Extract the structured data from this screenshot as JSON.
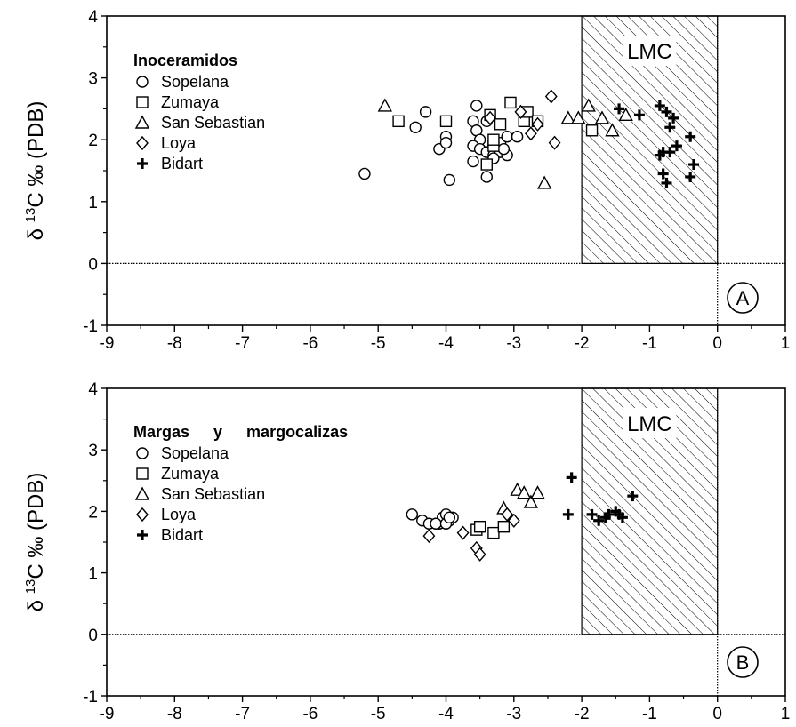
{
  "chart_data": [
    {
      "type": "scatter",
      "panel_label": "A",
      "ylabel": "δ13C ‰ (PDB)",
      "ylabel_parts": {
        "delta": "δ",
        "superscript": "13",
        "rest": "C ‰ (PDB)"
      },
      "xlim": [
        -9,
        1
      ],
      "ylim": [
        -1,
        4
      ],
      "x_ticks": [
        "-9",
        "-8",
        "-7",
        "-6",
        "-5",
        "-4",
        "-3",
        "-2",
        "-1",
        "0",
        "1"
      ],
      "y_ticks": [
        "-1",
        "0",
        "1",
        "2",
        "3",
        "4"
      ],
      "legend_title": "Inoceramidos",
      "legend_position": "top-left",
      "shaded_region": {
        "label": "LMC",
        "x": [
          -2,
          0
        ],
        "y": [
          0,
          4
        ],
        "pattern": "diagonal hatch"
      },
      "reference_lines": {
        "y": 0,
        "x": 0
      },
      "series": [
        {
          "name": "Sopelana",
          "marker": "circle",
          "points": [
            [
              -5.2,
              1.45
            ],
            [
              -4.3,
              2.45
            ],
            [
              -4.1,
              1.85
            ],
            [
              -4.0,
              2.05
            ],
            [
              -4.0,
              1.95
            ],
            [
              -3.95,
              1.35
            ],
            [
              -4.45,
              2.2
            ],
            [
              -3.55,
              2.55
            ],
            [
              -3.6,
              2.3
            ],
            [
              -3.55,
              2.15
            ],
            [
              -3.5,
              2.0
            ],
            [
              -3.6,
              1.9
            ],
            [
              -3.5,
              1.85
            ],
            [
              -3.4,
              1.8
            ],
            [
              -3.3,
              1.75
            ],
            [
              -3.2,
              1.8
            ],
            [
              -3.6,
              1.65
            ],
            [
              -3.4,
              1.4
            ],
            [
              -3.3,
              1.7
            ],
            [
              -3.1,
              1.75
            ],
            [
              -3.2,
              1.95
            ],
            [
              -3.1,
              2.05
            ],
            [
              -3.15,
              1.85
            ],
            [
              -2.95,
              2.05
            ],
            [
              -3.4,
              2.3
            ]
          ]
        },
        {
          "name": "Zumaya",
          "marker": "square",
          "points": [
            [
              -4.7,
              2.3
            ],
            [
              -4.0,
              2.3
            ],
            [
              -3.35,
              2.4
            ],
            [
              -3.3,
              1.9
            ],
            [
              -3.2,
              2.25
            ],
            [
              -3.05,
              2.6
            ],
            [
              -2.85,
              2.3
            ],
            [
              -2.8,
              2.45
            ],
            [
              -2.65,
              2.3
            ],
            [
              -3.4,
              1.6
            ],
            [
              -3.3,
              2.0
            ],
            [
              -1.85,
              2.15
            ]
          ]
        },
        {
          "name": "San Sebastian",
          "marker": "triangle",
          "points": [
            [
              -4.9,
              2.55
            ],
            [
              -2.55,
              1.3
            ],
            [
              -2.2,
              2.35
            ],
            [
              -2.05,
              2.35
            ],
            [
              -1.9,
              2.55
            ],
            [
              -1.7,
              2.35
            ],
            [
              -1.55,
              2.15
            ],
            [
              -1.35,
              2.4
            ]
          ]
        },
        {
          "name": "Loya",
          "marker": "diamond",
          "points": [
            [
              -2.45,
              2.7
            ],
            [
              -2.4,
              1.95
            ],
            [
              -2.75,
              2.1
            ],
            [
              -2.9,
              2.45
            ],
            [
              -2.65,
              2.25
            ],
            [
              -3.35,
              2.35
            ]
          ]
        },
        {
          "name": "Bidart",
          "marker": "plus",
          "points": [
            [
              -1.45,
              2.5
            ],
            [
              -1.15,
              2.4
            ],
            [
              -0.85,
              2.55
            ],
            [
              -0.75,
              2.45
            ],
            [
              -0.65,
              2.35
            ],
            [
              -0.7,
              2.2
            ],
            [
              -0.6,
              1.9
            ],
            [
              -0.7,
              1.8
            ],
            [
              -0.8,
              1.8
            ],
            [
              -0.85,
              1.75
            ],
            [
              -0.8,
              1.45
            ],
            [
              -0.75,
              1.3
            ],
            [
              -0.4,
              2.05
            ],
            [
              -0.35,
              1.6
            ],
            [
              -0.4,
              1.4
            ]
          ]
        }
      ]
    },
    {
      "type": "scatter",
      "panel_label": "B",
      "ylabel": "δ13C ‰ (PDB)",
      "ylabel_parts": {
        "delta": "δ",
        "superscript": "13",
        "rest": "C ‰ (PDB)"
      },
      "xlim": [
        -9,
        1
      ],
      "ylim": [
        -1,
        4
      ],
      "x_ticks": [
        "-9",
        "-8",
        "-7",
        "-6",
        "-5",
        "-4",
        "-3",
        "-2",
        "-1",
        "0",
        "1"
      ],
      "y_ticks": [
        "-1",
        "0",
        "1",
        "2",
        "3",
        "4"
      ],
      "legend_title": "Margas y margocalizas",
      "legend_position": "top-left",
      "shaded_region": {
        "label": "LMC",
        "x": [
          -2,
          0
        ],
        "y": [
          0,
          4
        ],
        "pattern": "diagonal hatch"
      },
      "reference_lines": {
        "y": 0,
        "x": 0
      },
      "series": [
        {
          "name": "Sopelana",
          "marker": "circle",
          "points": [
            [
              -4.5,
              1.95
            ],
            [
              -4.35,
              1.85
            ],
            [
              -4.25,
              1.8
            ],
            [
              -4.1,
              1.8
            ],
            [
              -4.05,
              1.9
            ],
            [
              -4.0,
              1.95
            ],
            [
              -3.95,
              1.85
            ],
            [
              -3.9,
              1.9
            ],
            [
              -4.15,
              1.8
            ],
            [
              -4.0,
              1.8
            ],
            [
              -3.95,
              1.9
            ]
          ]
        },
        {
          "name": "Zumaya",
          "marker": "square",
          "points": [
            [
              -3.55,
              1.7
            ],
            [
              -3.5,
              1.75
            ],
            [
              -3.3,
              1.65
            ],
            [
              -3.15,
              1.75
            ]
          ]
        },
        {
          "name": "San Sebastian",
          "marker": "triangle",
          "points": [
            [
              -3.15,
              2.05
            ],
            [
              -2.95,
              2.35
            ],
            [
              -2.85,
              2.3
            ],
            [
              -2.75,
              2.15
            ],
            [
              -2.65,
              2.3
            ]
          ]
        },
        {
          "name": "Loya",
          "marker": "diamond",
          "points": [
            [
              -4.25,
              1.6
            ],
            [
              -3.75,
              1.65
            ],
            [
              -3.55,
              1.4
            ],
            [
              -3.5,
              1.3
            ],
            [
              -3.1,
              1.95
            ],
            [
              -3.0,
              1.85
            ]
          ]
        },
        {
          "name": "Bidart",
          "marker": "plus",
          "points": [
            [
              -2.15,
              2.55
            ],
            [
              -2.2,
              1.95
            ],
            [
              -1.85,
              1.95
            ],
            [
              -1.75,
              1.85
            ],
            [
              -1.65,
              1.9
            ],
            [
              -1.6,
              1.95
            ],
            [
              -1.5,
              2.0
            ],
            [
              -1.45,
              1.95
            ],
            [
              -1.4,
              1.9
            ],
            [
              -1.25,
              2.25
            ]
          ]
        }
      ]
    }
  ]
}
